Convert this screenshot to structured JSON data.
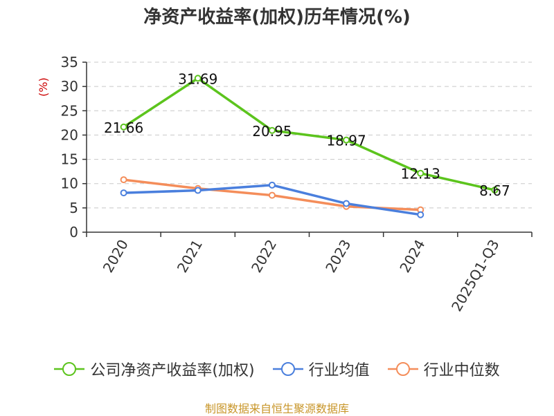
{
  "chart_data": {
    "type": "line",
    "title": "净资产收益率(加权)历年情况(%)",
    "ylabel": "(%)",
    "categories": [
      "2020",
      "2021",
      "2022",
      "2023",
      "2024",
      "2025Q1-Q3"
    ],
    "yticks": [
      0,
      5,
      10,
      15,
      20,
      25,
      30,
      35
    ],
    "ylim": [
      0,
      35
    ],
    "grid": true,
    "legend_position": "bottom",
    "series": [
      {
        "name": "公司净资产收益率(加权)",
        "color": "#5cc41d",
        "values": [
          21.66,
          31.69,
          20.95,
          18.97,
          12.13,
          8.67
        ],
        "labels": [
          "21.66",
          "31.69",
          "20.95",
          "18.97",
          "12.13",
          "8.67"
        ]
      },
      {
        "name": "行业均值",
        "color": "#4a7fdd",
        "values": [
          8.1,
          8.6,
          9.7,
          5.9,
          3.6,
          null
        ]
      },
      {
        "name": "行业中位数",
        "color": "#f48d5a",
        "values": [
          10.8,
          9.0,
          7.6,
          5.3,
          4.6,
          null
        ]
      }
    ]
  },
  "footer": {
    "source": "制图数据来自恒生聚源数据库"
  }
}
